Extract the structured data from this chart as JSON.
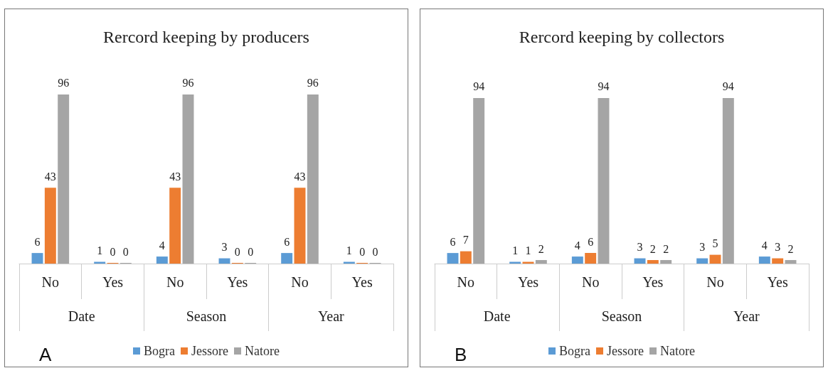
{
  "chart_data": [
    {
      "type": "bar",
      "title": "Rercord keeping by producers",
      "categories": [
        "No",
        "Yes",
        "No",
        "Yes",
        "No",
        "Yes"
      ],
      "series": [
        {
          "name": "Bogra",
          "color": "#5b9bd5",
          "values": [
            6,
            1,
            4,
            3,
            6,
            1
          ]
        },
        {
          "name": "Jessore",
          "color": "#ed7d31",
          "values": [
            43,
            0,
            43,
            0,
            43,
            0
          ]
        },
        {
          "name": "Natore",
          "color": "#a5a5a5",
          "values": [
            96,
            0,
            96,
            0,
            96,
            0
          ]
        }
      ],
      "annotations": [
        "Date",
        "Season",
        "Year",
        "A"
      ],
      "data_labels": true,
      "legend": "bottom"
    },
    {
      "type": "bar",
      "title": "Rercord keeping by collectors",
      "categories": [
        "No",
        "Yes",
        "No",
        "Yes",
        "No",
        "Yes"
      ],
      "series": [
        {
          "name": "Bogra",
          "color": "#5b9bd5",
          "values": [
            6,
            1,
            4,
            3,
            3,
            4
          ]
        },
        {
          "name": "Jessore",
          "color": "#ed7d31",
          "values": [
            7,
            1,
            6,
            2,
            5,
            3
          ]
        },
        {
          "name": "Natore",
          "color": "#a5a5a5",
          "values": [
            94,
            2,
            94,
            2,
            94,
            2
          ]
        }
      ],
      "annotations": [
        "Date",
        "Season",
        "Year",
        "B"
      ],
      "data_labels": true,
      "legend": "bottom"
    }
  ]
}
